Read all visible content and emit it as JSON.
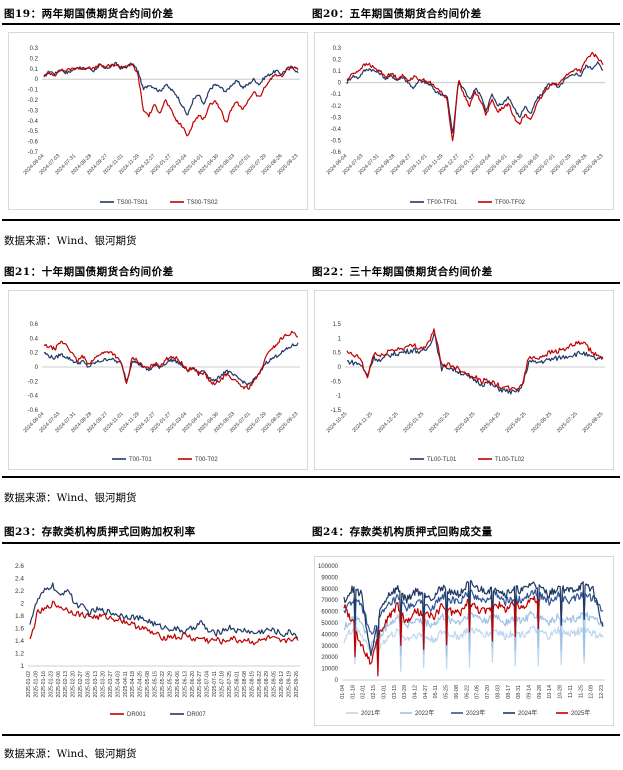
{
  "sections": [
    {
      "left_title": "图19：两年期国债期货合约间价差",
      "right_title": "图20：五年期国债期货合约间价差",
      "source": "数据来源：Wind、银河期货"
    },
    {
      "left_title": "图21：十年期国债期货合约间价差",
      "right_title": "图22：三十年期国债期货合约间价差",
      "source": "数据来源：Wind、银河期货"
    },
    {
      "left_title": "图23：存款类机构质押式回购加权利率",
      "right_title": "图24：存款类机构质押式回购成交量",
      "source": "数据来源：Wind、银河期货"
    }
  ],
  "chart_data": [
    {
      "id": "fig19",
      "type": "line",
      "title": "两年期国债期货合约间价差",
      "y_ticks": [
        "0.3",
        "0.2",
        "0.1",
        "0",
        "-0.1",
        "-0.2",
        "-0.3",
        "-0.4",
        "-0.5",
        "-0.6",
        "-0.7"
      ],
      "ylim": [
        -0.7,
        0.3
      ],
      "x_ticks": [
        "2024-06-04",
        "2024-07-03",
        "2024-07-31",
        "2024-08-28",
        "2024-09-27",
        "2024-11-01",
        "2024-11-29",
        "2024-12-27",
        "2025-01-27",
        "2025-03-04",
        "2025-04-01",
        "2025-04-30",
        "2025-06-03",
        "2025-07-01",
        "2025-07-29",
        "2025-08-26",
        "2025-09-23"
      ],
      "series": [
        {
          "name": "TS00-TS01",
          "color": "#1f3864",
          "anchors": [
            0.02,
            0.08,
            0.05,
            0.1,
            0.06,
            0.08,
            0.12,
            0.09,
            0.11,
            0.08,
            0.14,
            0.1,
            0.12,
            0.15,
            0.1,
            0.12,
            0.15,
            0.08,
            -0.1,
            -0.05,
            -0.08,
            -0.12,
            -0.05,
            -0.1,
            -0.15,
            -0.25,
            -0.35,
            -0.2,
            -0.15,
            -0.25,
            -0.1,
            -0.05,
            -0.08,
            -0.12,
            -0.05,
            -0.02,
            -0.08,
            -0.05,
            0.0,
            -0.05,
            0.02,
            0.05,
            0.08,
            0.05,
            0.1,
            0.12,
            0.06
          ]
        },
        {
          "name": "TS00-TS02",
          "color": "#c00000",
          "anchors": [
            0.03,
            0.06,
            0.04,
            0.09,
            0.08,
            0.1,
            0.11,
            0.1,
            0.12,
            0.1,
            0.13,
            0.12,
            0.13,
            0.14,
            0.12,
            0.13,
            0.14,
            0.05,
            -0.3,
            -0.35,
            -0.25,
            -0.32,
            -0.2,
            -0.3,
            -0.4,
            -0.45,
            -0.55,
            -0.42,
            -0.35,
            -0.38,
            -0.25,
            -0.2,
            -0.3,
            -0.42,
            -0.28,
            -0.22,
            -0.3,
            -0.2,
            -0.12,
            -0.18,
            -0.08,
            0.0,
            0.05,
            0.02,
            0.09,
            0.12,
            0.1
          ]
        }
      ]
    },
    {
      "id": "fig20",
      "type": "line",
      "title": "五年期国债期货合约间价差",
      "y_ticks": [
        "0.3",
        "0.2",
        "0.1",
        "0",
        "-0.1",
        "-0.2",
        "-0.3",
        "-0.4",
        "-0.5",
        "-0.6"
      ],
      "ylim": [
        -0.6,
        0.3
      ],
      "x_ticks": [
        "2024-06-04",
        "2024-07-03",
        "2024-07-31",
        "2024-08-28",
        "2024-09-27",
        "2024-11-01",
        "2024-11-29",
        "2024-12-27",
        "2025-01-27",
        "2025-03-04",
        "2025-04-01",
        "2025-04-30",
        "2025-06-03",
        "2025-07-01",
        "2025-07-29",
        "2025-08-26",
        "2025-09-23"
      ],
      "series": [
        {
          "name": "TF00-TF01",
          "color": "#1f3864",
          "anchors": [
            0.0,
            0.06,
            0.04,
            0.1,
            0.12,
            0.1,
            0.08,
            0.03,
            0.06,
            0.02,
            0.05,
            0.0,
            -0.05,
            0.02,
            0.0,
            -0.02,
            -0.08,
            -0.1,
            -0.12,
            -0.45,
            0.0,
            -0.05,
            -0.15,
            -0.05,
            -0.1,
            -0.25,
            -0.1,
            -0.2,
            -0.18,
            -0.12,
            -0.22,
            -0.3,
            -0.2,
            -0.28,
            -0.15,
            -0.1,
            -0.02,
            0.0,
            -0.05,
            0.02,
            0.05,
            0.08,
            0.06,
            0.15,
            0.12,
            0.18,
            0.1
          ]
        },
        {
          "name": "TF00-TF02",
          "color": "#c00000",
          "anchors": [
            0.02,
            0.08,
            0.1,
            0.15,
            0.16,
            0.12,
            0.1,
            0.05,
            0.08,
            0.04,
            0.06,
            0.02,
            0.05,
            0.03,
            0.02,
            0.0,
            -0.05,
            -0.08,
            -0.15,
            -0.52,
            0.02,
            -0.1,
            -0.2,
            -0.08,
            -0.15,
            -0.28,
            -0.15,
            -0.25,
            -0.22,
            -0.18,
            -0.3,
            -0.35,
            -0.28,
            -0.32,
            -0.2,
            -0.12,
            -0.05,
            0.0,
            -0.02,
            0.05,
            0.08,
            0.12,
            0.1,
            0.2,
            0.25,
            0.22,
            0.16
          ]
        }
      ]
    },
    {
      "id": "fig21",
      "type": "line",
      "title": "十年期国债期货合约间价差",
      "y_ticks": [
        "0.6",
        "0.4",
        "0.2",
        "0",
        "-0.2",
        "-0.4",
        "-0.6"
      ],
      "ylim": [
        -0.6,
        0.6
      ],
      "x_ticks": [
        "2024-06-04",
        "2024-07-03",
        "2024-07-31",
        "2024-08-28",
        "2024-09-27",
        "2024-11-01",
        "2024-11-29",
        "2024-12-27",
        "2025-01-27",
        "2025-03-04",
        "2025-04-01",
        "2025-04-30",
        "2025-06-03",
        "2025-07-01",
        "2025-07-29",
        "2025-08-26",
        "2025-09-23"
      ],
      "series": [
        {
          "name": "T00-T01",
          "color": "#1f3864",
          "anchors": [
            0.2,
            0.15,
            0.12,
            0.18,
            0.14,
            0.1,
            0.05,
            0.08,
            0.0,
            0.05,
            0.08,
            0.1,
            0.12,
            0.08,
            0.05,
            -0.2,
            0.1,
            0.05,
            0.0,
            -0.05,
            0.02,
            0.0,
            0.05,
            0.1,
            0.08,
            0.02,
            -0.05,
            -0.02,
            -0.08,
            -0.05,
            -0.15,
            -0.2,
            -0.12,
            -0.05,
            -0.1,
            -0.15,
            -0.2,
            -0.25,
            -0.18,
            -0.1,
            0.05,
            0.1,
            0.15,
            0.2,
            0.25,
            0.3,
            0.32
          ]
        },
        {
          "name": "T00-T02",
          "color": "#c00000",
          "anchors": [
            0.3,
            0.28,
            0.25,
            0.35,
            0.32,
            0.2,
            0.08,
            0.15,
            0.05,
            0.1,
            0.18,
            0.2,
            0.22,
            0.15,
            0.05,
            -0.25,
            0.15,
            0.08,
            0.0,
            -0.02,
            0.05,
            0.02,
            0.1,
            0.15,
            0.12,
            0.05,
            -0.05,
            0.0,
            -0.1,
            -0.08,
            -0.2,
            -0.25,
            -0.18,
            -0.1,
            -0.15,
            -0.22,
            -0.28,
            -0.3,
            -0.2,
            -0.1,
            0.1,
            0.25,
            0.3,
            0.4,
            0.45,
            0.48,
            0.42
          ]
        }
      ]
    },
    {
      "id": "fig22",
      "type": "line",
      "title": "三十年期国债期货合约间价差",
      "y_ticks": [
        "1.5",
        "1",
        "0.5",
        "0",
        "-0.5",
        "-1",
        "-1.5"
      ],
      "ylim": [
        -1.5,
        1.5
      ],
      "x_ticks": [
        "2024-10-25",
        "2024-11-25",
        "2024-12-25",
        "2025-01-25",
        "2025-02-25",
        "2025-03-25",
        "2025-04-25",
        "2025-05-25",
        "2025-06-25",
        "2025-07-25",
        "2025-08-25"
      ],
      "series": [
        {
          "name": "TL00-TL01",
          "color": "#1f3864",
          "anchors": [
            0.2,
            0.15,
            0.1,
            -0.3,
            0.35,
            0.2,
            0.4,
            0.45,
            0.5,
            0.55,
            0.6,
            0.5,
            0.65,
            1.2,
            -0.05,
            0.0,
            -0.1,
            -0.2,
            -0.35,
            -0.45,
            -0.6,
            -0.55,
            -0.7,
            -0.8,
            -0.85,
            -0.9,
            -0.7,
            0.2,
            0.15,
            0.2,
            0.25,
            0.3,
            0.35,
            0.4,
            0.45,
            0.5,
            0.35,
            0.28,
            0.3
          ]
        },
        {
          "name": "TL00-TL02",
          "color": "#c00000",
          "anchors": [
            0.5,
            0.4,
            0.3,
            -0.4,
            0.5,
            0.35,
            0.55,
            0.6,
            0.65,
            0.7,
            0.75,
            0.65,
            0.8,
            1.3,
            0.05,
            0.1,
            0.0,
            -0.1,
            -0.25,
            -0.35,
            -0.5,
            -0.45,
            -0.6,
            -0.7,
            -0.75,
            -0.8,
            -0.6,
            0.35,
            0.3,
            0.4,
            0.5,
            0.55,
            0.6,
            0.7,
            0.8,
            0.85,
            0.6,
            0.4,
            0.35
          ]
        }
      ]
    },
    {
      "id": "fig23",
      "type": "line",
      "title": "存款类机构质押式回购加权利率",
      "y_ticks": [
        "2.6",
        "2.4",
        "2.2",
        "2",
        "1.8",
        "1.6",
        "1.4",
        "1.2",
        "1"
      ],
      "ylim": [
        1.0,
        2.6
      ],
      "x_ticks": [
        "2025-01-02",
        "2025-01-09",
        "2025-01-16",
        "2025-01-23",
        "2025-02-06",
        "2025-02-13",
        "2025-02-20",
        "2025-02-27",
        "2025-03-06",
        "2025-03-13",
        "2025-03-20",
        "2025-03-27",
        "2025-04-03",
        "2025-04-11",
        "2025-04-18",
        "2025-04-25",
        "2025-05-08",
        "2025-05-15",
        "2025-05-22",
        "2025-05-29",
        "2025-06-06",
        "2025-06-13",
        "2025-06-20",
        "2025-06-27",
        "2025-07-04",
        "2025-07-11",
        "2025-07-18",
        "2025-07-25",
        "2025-08-01",
        "2025-08-08",
        "2025-08-15",
        "2025-08-22",
        "2025-08-29",
        "2025-09-05",
        "2025-09-12",
        "2025-09-19",
        "2025-09-26"
      ],
      "series": [
        {
          "name": "DR001",
          "color": "#c00000",
          "anchors": [
            1.4,
            1.85,
            1.9,
            2.0,
            1.95,
            1.9,
            1.85,
            1.82,
            1.8,
            1.78,
            1.8,
            1.76,
            1.75,
            1.7,
            1.65,
            1.62,
            1.55,
            1.5,
            1.45,
            1.48,
            1.45,
            1.5,
            1.42,
            1.45,
            1.4,
            1.42,
            1.38,
            1.45,
            1.4,
            1.42,
            1.38,
            1.4,
            1.45,
            1.42,
            1.38,
            1.45,
            1.4
          ]
        },
        {
          "name": "DR007",
          "color": "#1f3864",
          "anchors": [
            1.7,
            2.05,
            2.2,
            2.3,
            2.1,
            2.25,
            2.0,
            1.95,
            1.85,
            1.9,
            1.88,
            1.85,
            1.82,
            1.8,
            1.78,
            1.75,
            1.72,
            1.65,
            1.62,
            1.6,
            1.58,
            1.55,
            1.62,
            1.7,
            1.55,
            1.52,
            1.58,
            1.62,
            1.55,
            1.58,
            1.52,
            1.55,
            1.58,
            1.56,
            1.5,
            1.55,
            1.48
          ]
        }
      ]
    },
    {
      "id": "fig24",
      "type": "line",
      "title": "存款类机构质押式回购成交量",
      "y_ticks": [
        "100000",
        "90000",
        "80000",
        "70000",
        "60000",
        "50000",
        "40000",
        "30000",
        "20000",
        "10000",
        "0"
      ],
      "ylim": [
        0,
        100000
      ],
      "x_ticks": [
        "01-04",
        "01-18",
        "02-01",
        "02-15",
        "03-01",
        "03-15",
        "03-29",
        "04-12",
        "04-27",
        "05-11",
        "05-25",
        "06-08",
        "06-22",
        "07-06",
        "07-20",
        "08-03",
        "08-17",
        "08-31",
        "09-14",
        "09-28",
        "10-14",
        "10-28",
        "11-11",
        "11-25",
        "12-09",
        "12-23"
      ],
      "series": [
        {
          "name": "2021年",
          "color": "#bdd7ee",
          "anchors": [
            35000,
            45000,
            40000,
            25000,
            30000,
            38000,
            42000,
            36000,
            40000,
            38000,
            35000,
            42000,
            40000,
            38000,
            45000,
            42000,
            40000,
            44000,
            38000,
            42000,
            40000,
            45000,
            42000,
            38000,
            44000,
            40000,
            42000,
            45000,
            40000,
            38000
          ]
        },
        {
          "name": "2022年",
          "color": "#9dc3e6",
          "anchors": [
            45000,
            55000,
            50000,
            30000,
            38000,
            50000,
            55000,
            48000,
            52000,
            50000,
            48000,
            55000,
            52000,
            50000,
            58000,
            55000,
            52000,
            56000,
            50000,
            54000,
            52000,
            58000,
            55000,
            50000,
            56000,
            52000,
            54000,
            58000,
            52000,
            50000
          ]
        },
        {
          "name": "2023年",
          "color": "#2e5597",
          "anchors": [
            60000,
            70000,
            65000,
            40000,
            55000,
            65000,
            72000,
            62000,
            68000,
            66000,
            62000,
            75000,
            70000,
            68000,
            78000,
            72000,
            70000,
            76000,
            68000,
            72000,
            70000,
            78000,
            75000,
            68000,
            74000,
            70000,
            72000,
            76000,
            70000,
            60000
          ]
        },
        {
          "name": "2024年",
          "color": "#1f3864",
          "anchors": [
            70000,
            80000,
            75000,
            20000,
            60000,
            75000,
            80000,
            70000,
            78000,
            76000,
            72000,
            82000,
            78000,
            75000,
            85000,
            80000,
            78000,
            82000,
            75000,
            80000,
            78000,
            85000,
            80000,
            75000,
            82000,
            78000,
            80000,
            84000,
            78000,
            45000
          ]
        },
        {
          "name": "2025年",
          "color": "#c00000",
          "anchors": [
            65000,
            50000,
            30000,
            15000,
            40000,
            55000,
            65000,
            50000,
            60000,
            58000,
            55000,
            65000,
            60000,
            58000,
            70000,
            62000,
            60000,
            68000,
            62000,
            66000,
            64000,
            72000,
            68000
          ]
        }
      ]
    }
  ]
}
